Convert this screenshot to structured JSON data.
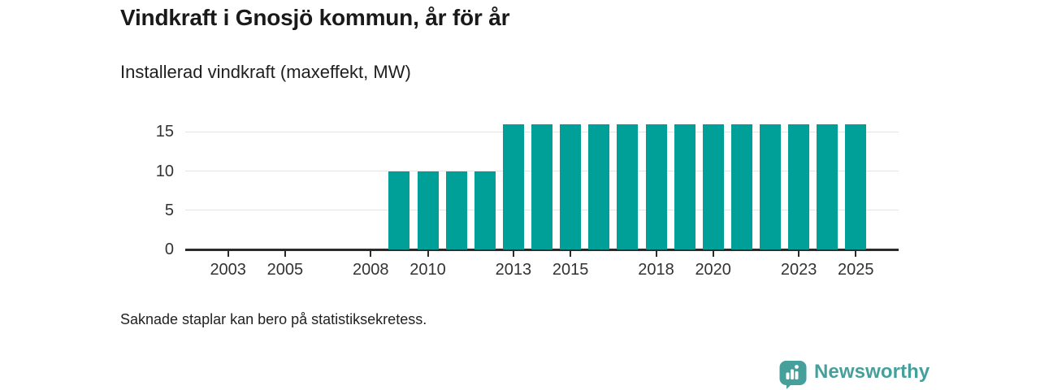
{
  "header": {
    "title": "Vindkraft i Gnosjö kommun, år för år",
    "subtitle": "Installerad vindkraft (maxeffekt, MW)"
  },
  "chart_data": {
    "type": "bar",
    "title": "Vindkraft i Gnosjö kommun, år för år",
    "ylabel": "Installerad vindkraft (maxeffekt, MW)",
    "unit": "MW",
    "categories": [
      2002,
      2003,
      2004,
      2005,
      2006,
      2007,
      2008,
      2009,
      2010,
      2011,
      2012,
      2013,
      2014,
      2015,
      2016,
      2017,
      2018,
      2019,
      2020,
      2021,
      2022,
      2023,
      2024,
      2025
    ],
    "values": [
      null,
      null,
      null,
      null,
      null,
      null,
      null,
      10,
      10,
      10,
      10,
      16,
      16,
      16,
      16,
      16,
      16,
      16,
      16,
      16,
      16,
      16,
      16,
      16
    ],
    "x_domain": [
      2002,
      2026
    ],
    "x_tick_labels": [
      "2003",
      "2005",
      "2008",
      "2010",
      "2013",
      "2015",
      "2018",
      "2020",
      "2023",
      "2025"
    ],
    "y_ticks": [
      0,
      5,
      10,
      15
    ],
    "ylim": [
      0,
      17.3
    ],
    "grid": "horizontal",
    "legend": "none",
    "bar_color": "#00a099"
  },
  "footnote": {
    "text": "Saknade staplar kan bero på statistiksekretess."
  },
  "branding": {
    "logo_text": "Newsworthy",
    "logo_color": "#45a09c",
    "logo_icon": "bar-chart-speech-bubble"
  }
}
